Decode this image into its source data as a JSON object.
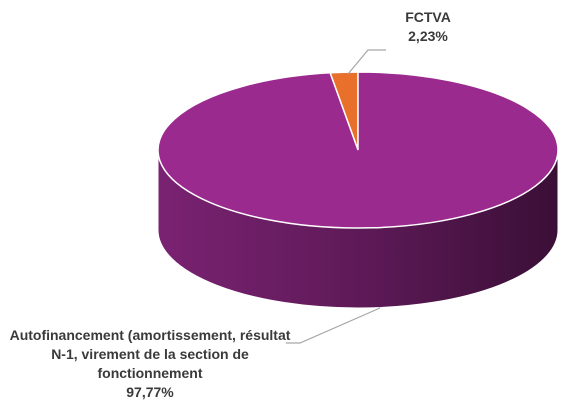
{
  "chart_data": {
    "type": "pie3d",
    "categories": [
      "FCTVA",
      "Autofinancement (amortissement, résultat N-1, virement de la section de fonctionnement"
    ],
    "values": [
      2.23,
      97.77
    ],
    "value_labels": [
      "2,23%",
      "97,77%"
    ],
    "colors": [
      "#e8702a",
      "#9b2a8f"
    ]
  }
}
